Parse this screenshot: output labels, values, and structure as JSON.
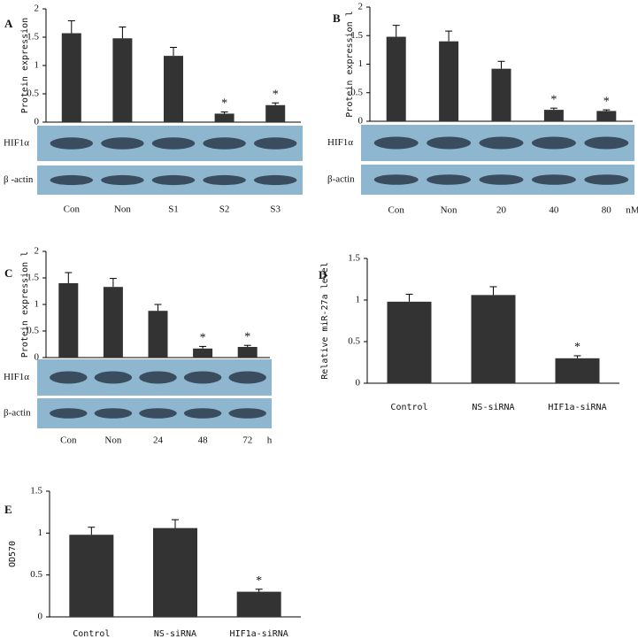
{
  "chart_data": [
    {
      "type": "bar",
      "panel": "A",
      "y_label": "Protein expression",
      "categories": [
        "Con",
        "Non",
        "S1",
        "S2",
        "S3"
      ],
      "values": [
        1.57,
        1.48,
        1.17,
        0.15,
        0.3
      ],
      "errors": [
        0.22,
        0.2,
        0.15,
        0.03,
        0.04
      ],
      "annotations": [
        null,
        null,
        null,
        "*",
        "*"
      ],
      "color": "#333333",
      "ylim": [
        0,
        2
      ],
      "yticks": [
        0,
        0.5,
        1,
        1.5,
        2
      ],
      "blot_labels": [
        "HIF1α",
        "β -actin"
      ]
    },
    {
      "type": "bar",
      "panel": "B",
      "y_label": "Protein expression l",
      "categories": [
        "Con",
        "Non",
        "20",
        "40",
        "80"
      ],
      "unit": "nM",
      "values": [
        1.48,
        1.4,
        0.92,
        0.2,
        0.18
      ],
      "errors": [
        0.2,
        0.18,
        0.13,
        0.03,
        0.02
      ],
      "annotations": [
        null,
        null,
        null,
        "*",
        "*"
      ],
      "color": "#333333",
      "ylim": [
        0,
        2
      ],
      "yticks": [
        0,
        0.5,
        1,
        1.5,
        2
      ],
      "blot_labels": [
        "HIF1α",
        "β-actin"
      ]
    },
    {
      "type": "bar",
      "panel": "C",
      "y_label": "Protein expression l",
      "categories": [
        "Con",
        "Non",
        "24",
        "48",
        "72"
      ],
      "unit": "h",
      "values": [
        1.4,
        1.33,
        0.88,
        0.17,
        0.2
      ],
      "errors": [
        0.2,
        0.16,
        0.12,
        0.04,
        0.03
      ],
      "annotations": [
        null,
        null,
        null,
        "*",
        "*"
      ],
      "color": "#333333",
      "ylim": [
        0,
        2
      ],
      "yticks": [
        0,
        0.5,
        1,
        1.5,
        2
      ],
      "blot_labels": [
        "HIF1α",
        "β-actin"
      ]
    },
    {
      "type": "bar",
      "panel": "D",
      "y_label": "Relative miR-27a level",
      "categories": [
        "Control",
        "NS-siRNA",
        "HIF1a-siRNA"
      ],
      "values": [
        0.98,
        1.06,
        0.3
      ],
      "errors": [
        0.09,
        0.1,
        0.03
      ],
      "annotations": [
        null,
        null,
        "*"
      ],
      "color": "#333333",
      "ylim": [
        0,
        1.5
      ],
      "yticks": [
        0,
        0.5,
        1,
        1.5
      ]
    },
    {
      "type": "bar",
      "panel": "E",
      "y_label": "OD570",
      "categories": [
        "Control",
        "NS-siRNA",
        "HIF1a-siRNA"
      ],
      "values": [
        0.98,
        1.06,
        0.3
      ],
      "errors": [
        0.09,
        0.1,
        0.03
      ],
      "annotations": [
        null,
        null,
        "*"
      ],
      "color": "#333333",
      "ylim": [
        0,
        1.5
      ],
      "yticks": [
        0,
        0.5,
        1,
        1.5
      ]
    }
  ]
}
